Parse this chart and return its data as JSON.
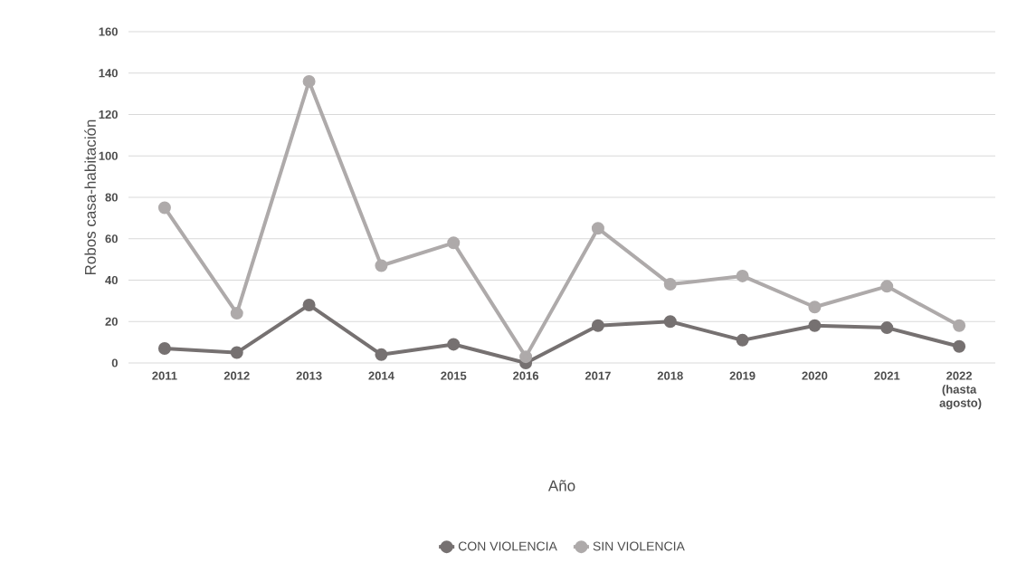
{
  "chart_data": {
    "type": "line",
    "xlabel": "Año",
    "ylabel": "Robos casa-habitación",
    "categories": [
      "2011",
      "2012",
      "2013",
      "2014",
      "2015",
      "2016",
      "2017",
      "2018",
      "2019",
      "2020",
      "2021",
      "2022 (hasta agosto)"
    ],
    "series": [
      {
        "name": "CON VIOLENCIA",
        "color": "#767171",
        "values": [
          7,
          5,
          28,
          4,
          9,
          0,
          18,
          20,
          11,
          18,
          17,
          8
        ]
      },
      {
        "name": "SIN VIOLENCIA",
        "color": "#aeaaaa",
        "values": [
          75,
          24,
          136,
          47,
          58,
          3,
          65,
          38,
          42,
          27,
          37,
          18
        ]
      }
    ],
    "ylim": [
      0,
      160
    ],
    "yticks": [
      0,
      20,
      40,
      60,
      80,
      100,
      120,
      140,
      160
    ],
    "grid": "y",
    "legend": "bottom",
    "marker": "circle",
    "line_style": "solid"
  }
}
